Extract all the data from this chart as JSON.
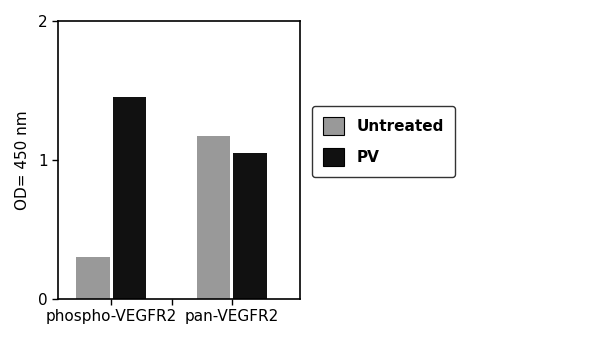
{
  "categories": [
    "phospho-VEGFR2",
    "pan-VEGFR2"
  ],
  "untreated_values": [
    0.3,
    1.17
  ],
  "pv_values": [
    1.45,
    1.05
  ],
  "bar_color_untreated": "#999999",
  "bar_color_pv": "#111111",
  "ylabel": "OD= 450 nm",
  "ylim": [
    0,
    2
  ],
  "yticks": [
    0,
    1,
    2
  ],
  "legend_labels": [
    "Untreated",
    "PV"
  ],
  "bar_width": 0.22,
  "group_positions": [
    0.35,
    1.15
  ],
  "xlim": [
    0.0,
    1.6
  ],
  "figsize": [
    6.08,
    3.39
  ],
  "dpi": 100
}
